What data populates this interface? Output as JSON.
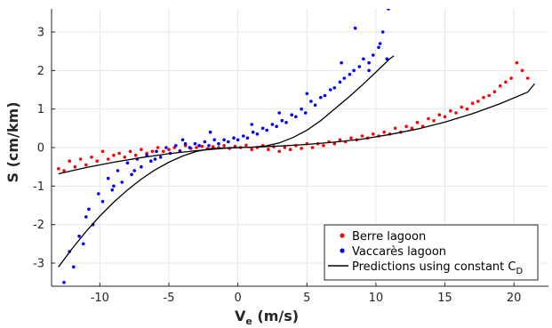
{
  "chart_data": {
    "type": "scatter",
    "xlabel": "V",
    "xlabel_sub": "e",
    "xlabel_unit": " (m/s)",
    "ylabel": "S (cm/km)",
    "xlim": [
      -13.5,
      22.5
    ],
    "ylim": [
      -3.6,
      3.6
    ],
    "xticks": [
      "-10",
      "-5",
      "0",
      "5",
      "10",
      "15",
      "20"
    ],
    "yticks": [
      "-3",
      "-2",
      "-1",
      "0",
      "1",
      "2",
      "3"
    ],
    "grid": true,
    "legend_position": "bottom-right",
    "series": [
      {
        "name": "Berre lagoon",
        "marker": "point",
        "color": "#ff0000",
        "x": [
          -13.0,
          -12.6,
          -12.2,
          -11.8,
          -11.4,
          -11.0,
          -10.6,
          -10.2,
          -9.8,
          -9.4,
          -9.0,
          -8.6,
          -8.2,
          -7.8,
          -7.4,
          -7.0,
          -6.6,
          -6.2,
          -5.8,
          -5.4,
          -5.0,
          -4.6,
          -4.2,
          -3.8,
          -3.4,
          -3.0,
          -2.6,
          -2.2,
          -1.8,
          -1.4,
          -1.0,
          -0.6,
          -0.2,
          0.2,
          0.6,
          1.0,
          1.4,
          1.8,
          2.2,
          2.6,
          3.0,
          3.4,
          3.8,
          4.2,
          4.6,
          5.0,
          5.4,
          5.8,
          6.2,
          6.6,
          7.0,
          7.4,
          7.8,
          8.2,
          8.6,
          9.0,
          9.4,
          9.8,
          10.2,
          10.6,
          11.0,
          11.4,
          11.8,
          12.2,
          12.6,
          13.0,
          13.4,
          13.8,
          14.2,
          14.6,
          15.0,
          15.4,
          15.8,
          16.2,
          16.6,
          17.0,
          17.4,
          17.8,
          18.2,
          18.6,
          19.0,
          19.4,
          19.8,
          20.2,
          20.6,
          21.0
        ],
        "y": [
          -0.55,
          -0.6,
          -0.35,
          -0.5,
          -0.3,
          -0.45,
          -0.25,
          -0.35,
          -0.1,
          -0.3,
          -0.2,
          -0.15,
          -0.25,
          -0.1,
          -0.2,
          -0.05,
          -0.15,
          -0.1,
          0.0,
          -0.1,
          -0.05,
          0.0,
          -0.08,
          0.05,
          -0.02,
          0.0,
          0.03,
          -0.03,
          0.02,
          0.0,
          0.05,
          -0.02,
          0.03,
          0.0,
          0.06,
          -0.05,
          0.0,
          0.05,
          -0.05,
          0.02,
          -0.1,
          0.0,
          -0.05,
          0.05,
          -0.02,
          0.1,
          0.0,
          0.1,
          0.05,
          0.15,
          0.1,
          0.2,
          0.15,
          0.25,
          0.2,
          0.3,
          0.25,
          0.35,
          0.3,
          0.4,
          0.35,
          0.5,
          0.4,
          0.55,
          0.5,
          0.65,
          0.55,
          0.75,
          0.7,
          0.85,
          0.8,
          0.95,
          0.9,
          1.05,
          1.0,
          1.15,
          1.2,
          1.3,
          1.35,
          1.45,
          1.6,
          1.7,
          1.8,
          2.2,
          2.0,
          1.8
        ]
      },
      {
        "name": "Vaccarès lagoon",
        "marker": "point",
        "color": "#0000ff",
        "x": [
          -12.6,
          -12.2,
          -11.9,
          -11.5,
          -11.2,
          -10.8,
          -10.5,
          -10.1,
          -9.8,
          -9.4,
          -9.1,
          -8.7,
          -8.4,
          -8.0,
          -7.7,
          -7.3,
          -7.0,
          -6.6,
          -6.3,
          -5.9,
          -5.6,
          -5.2,
          -4.9,
          -4.5,
          -4.2,
          -3.8,
          -3.5,
          -3.1,
          -2.8,
          -2.4,
          -2.1,
          -1.7,
          -1.4,
          -1.0,
          -0.7,
          -0.3,
          0.0,
          0.4,
          0.7,
          1.1,
          1.4,
          1.8,
          2.1,
          2.5,
          2.8,
          3.2,
          3.5,
          3.9,
          4.2,
          4.6,
          4.9,
          5.3,
          5.6,
          6.0,
          6.3,
          6.7,
          7.0,
          7.4,
          7.7,
          8.1,
          8.4,
          8.8,
          9.1,
          9.5,
          9.8,
          10.2,
          10.5,
          10.9,
          -11.0,
          -9.0,
          -7.5,
          -6.0,
          -4.0,
          -2.0,
          1.0,
          3.0,
          5.0,
          7.5,
          8.5,
          9.5,
          10.3,
          10.8
        ],
        "y": [
          -3.5,
          -2.7,
          -3.1,
          -2.3,
          -2.5,
          -1.6,
          -2.0,
          -1.2,
          -1.4,
          -0.8,
          -1.1,
          -0.6,
          -0.9,
          -0.4,
          -0.7,
          -0.3,
          -0.5,
          -0.2,
          -0.35,
          -0.1,
          -0.25,
          0.0,
          -0.15,
          0.05,
          -0.1,
          0.1,
          0.0,
          0.1,
          0.05,
          0.15,
          0.05,
          0.2,
          0.1,
          0.2,
          0.15,
          0.25,
          0.2,
          0.3,
          0.25,
          0.4,
          0.35,
          0.5,
          0.45,
          0.6,
          0.55,
          0.7,
          0.65,
          0.85,
          0.8,
          1.0,
          0.9,
          1.2,
          1.1,
          1.3,
          1.35,
          1.5,
          1.55,
          1.7,
          1.8,
          1.9,
          2.0,
          2.1,
          2.3,
          2.2,
          2.4,
          2.6,
          3.0,
          3.6,
          -1.8,
          -1.0,
          -0.6,
          -0.3,
          0.2,
          0.4,
          0.6,
          0.9,
          1.4,
          2.2,
          3.1,
          2.0,
          2.7,
          2.3
        ]
      },
      {
        "name": "Predictions using constant C",
        "name_sub": "D",
        "type": "line",
        "color": "#000000",
        "x": [
          -13.0,
          -12.0,
          -11.0,
          -10.0,
          -9.0,
          -8.0,
          -7.0,
          -6.0,
          -5.0,
          -4.0,
          -3.0,
          -2.0,
          -1.0,
          0.0,
          1.0,
          2.0,
          3.0,
          4.0,
          5.0,
          6.0,
          7.0,
          8.0,
          9.0,
          10.0,
          11.0,
          11.3
        ],
        "y": [
          -3.1,
          -2.62,
          -2.18,
          -1.78,
          -1.42,
          -1.1,
          -0.82,
          -0.58,
          -0.38,
          -0.22,
          -0.1,
          -0.03,
          -0.01,
          0.0,
          0.01,
          0.04,
          0.12,
          0.26,
          0.45,
          0.7,
          1.0,
          1.3,
          1.62,
          1.96,
          2.3,
          2.38
        ]
      },
      {
        "name": "Predictions using constant C",
        "name_sub": "D",
        "type": "line",
        "color": "#000000",
        "x": [
          -13.0,
          -11.0,
          -9.0,
          -7.0,
          -5.0,
          -3.0,
          -1.0,
          0.0,
          1.0,
          3.0,
          5.0,
          7.0,
          9.0,
          11.0,
          13.0,
          15.0,
          17.0,
          19.0,
          21.0,
          21.5
        ],
        "y": [
          -0.68,
          -0.52,
          -0.38,
          -0.26,
          -0.16,
          -0.08,
          -0.02,
          0.0,
          0.01,
          0.04,
          0.08,
          0.14,
          0.22,
          0.34,
          0.48,
          0.66,
          0.88,
          1.14,
          1.44,
          1.66
        ]
      }
    ]
  }
}
